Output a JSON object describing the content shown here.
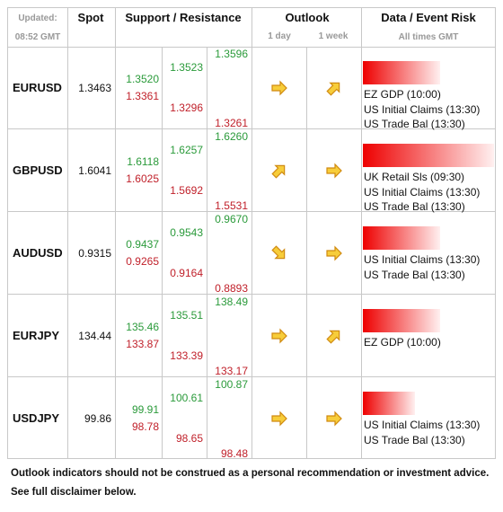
{
  "header": {
    "updated": "Updated:",
    "time": "08:52 GMT",
    "spot": "Spot",
    "sr": "Support / Resistance",
    "outlook": "Outlook",
    "day": "1 day",
    "week": "1 week",
    "event": "Data / Event Risk",
    "times": "All times GMT"
  },
  "table": {
    "rows": [
      {
        "pair": "EURUSD",
        "spot": "1.3463",
        "r1": "1.3520",
        "s1": "1.3361",
        "r2": "1.3523",
        "s2": "1.3296",
        "r3": "1.3596",
        "s3": "1.3261",
        "events": [
          "EZ GDP (10:00)",
          "US Initial Claims (13:30)",
          "US Trade Bal (13:30)"
        ]
      },
      {
        "pair": "GBPUSD",
        "spot": "1.6041",
        "r1": "1.6118",
        "s1": "1.6025",
        "r2": "1.6257",
        "s2": "1.5692",
        "r3": "1.6260",
        "s3": "1.5531",
        "events": [
          "UK Retail Sls (09:30)",
          "US Initial Claims (13:30)",
          "US Trade Bal (13:30)"
        ]
      },
      {
        "pair": "AUDUSD",
        "spot": "0.9315",
        "r1": "0.9437",
        "s1": "0.9265",
        "r2": "0.9543",
        "s2": "0.9164",
        "r3": "0.9670",
        "s3": "0.8893",
        "events": [
          "US Initial Claims (13:30)",
          "US Trade Bal (13:30)"
        ]
      },
      {
        "pair": "EURJPY",
        "spot": "134.44",
        "r1": "135.46",
        "s1": "133.87",
        "r2": "135.51",
        "s2": "133.39",
        "r3": "138.49",
        "s3": "133.17",
        "events": [
          "EZ GDP (10:00)"
        ]
      },
      {
        "pair": "USDJPY",
        "spot": "99.86",
        "r1": "99.91",
        "s1": "98.78",
        "r2": "100.61",
        "s2": "98.65",
        "r3": "100.87",
        "s3": "98.48",
        "events": [
          "US Initial Claims (13:30)",
          "US Trade Bal (13:30)"
        ]
      }
    ]
  },
  "footer": [
    "Outlook indicators should not be construed as a personal recommendation or investment advice.",
    "See full disclaimer below."
  ]
}
